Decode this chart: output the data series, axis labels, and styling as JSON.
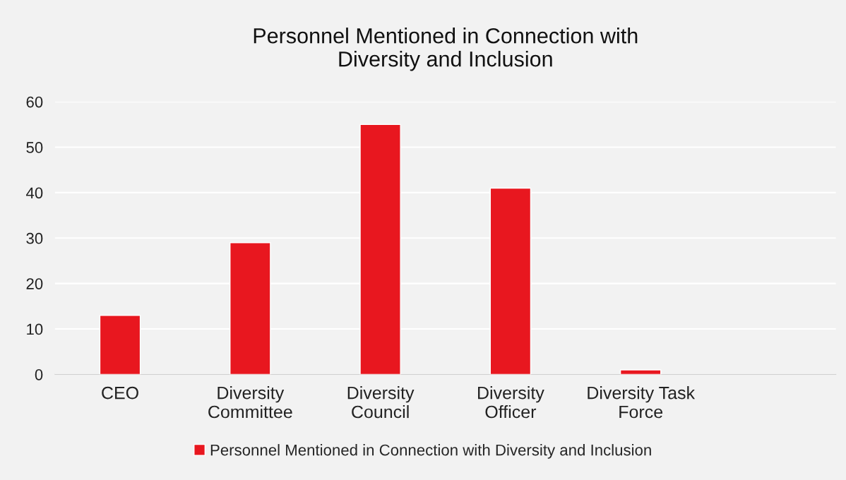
{
  "chart_data": {
    "type": "bar",
    "title": "Personnel Mentioned in Connection with\nDiversity and Inclusion",
    "categories": [
      "CEO",
      "Diversity\nCommittee",
      "Diversity\nCouncil",
      "Diversity\nOfficer",
      "Diversity Task\nForce",
      null
    ],
    "series": [
      {
        "name": "Personnel Mentioned in Connection with Diversity and Inclusion",
        "color": "#e8171f",
        "values": [
          13,
          29,
          55,
          41,
          1,
          null
        ]
      }
    ],
    "ylim": [
      0,
      60
    ],
    "yticks": [
      0,
      10,
      20,
      30,
      40,
      50,
      60
    ],
    "grid": "y",
    "legend": "bottom"
  }
}
